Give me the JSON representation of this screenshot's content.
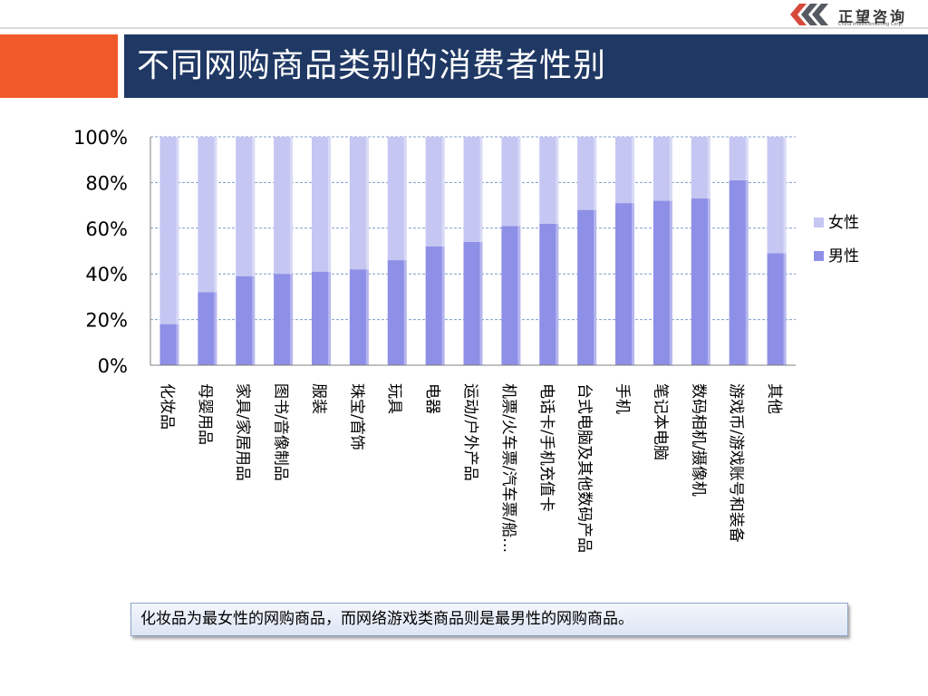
{
  "slide": {
    "title": "不同网购商品类别的消费者性别",
    "note": "化妆品为最女性的网购商品，而网络游戏类商品则是最男性的网购商品。"
  },
  "logo": {
    "name": "正望咨询",
    "subtitle": "China IntelliConsulting Corp.",
    "icon": "chevron-arrows-icon"
  },
  "colors": {
    "title_bar": "#1f3864",
    "accent_block": "#f05a28",
    "female": "#c5c6f2",
    "male": "#8e8fe6",
    "gridline": "#7f9cc9"
  },
  "chart_data": {
    "type": "bar",
    "stacked": true,
    "categories": [
      "化妆品",
      "母婴用品",
      "家具/家居用品",
      "图书/音像制品",
      "服装",
      "珠宝/首饰",
      "玩具",
      "电器",
      "运动/户外产品",
      "机票/火车票/汽车票/船…",
      "电话卡/手机充值卡",
      "台式电脑及其他数码产品",
      "手机",
      "笔记本电脑",
      "数码相机/摄像机",
      "游戏币/游戏账号和装备",
      "其他"
    ],
    "series": [
      {
        "name": "男性",
        "values": [
          18,
          32,
          39,
          40,
          41,
          42,
          46,
          52,
          54,
          61,
          62,
          68,
          71,
          72,
          73,
          81,
          49
        ]
      },
      {
        "name": "女性",
        "values": [
          82,
          68,
          61,
          60,
          59,
          58,
          54,
          48,
          46,
          39,
          38,
          32,
          29,
          28,
          27,
          19,
          51
        ]
      }
    ],
    "yticks": [
      "0%",
      "20%",
      "40%",
      "60%",
      "80%",
      "100%"
    ],
    "ylim": [
      0,
      100
    ],
    "legend": [
      "女性",
      "男性"
    ],
    "legend_position": "right",
    "grid": true
  }
}
